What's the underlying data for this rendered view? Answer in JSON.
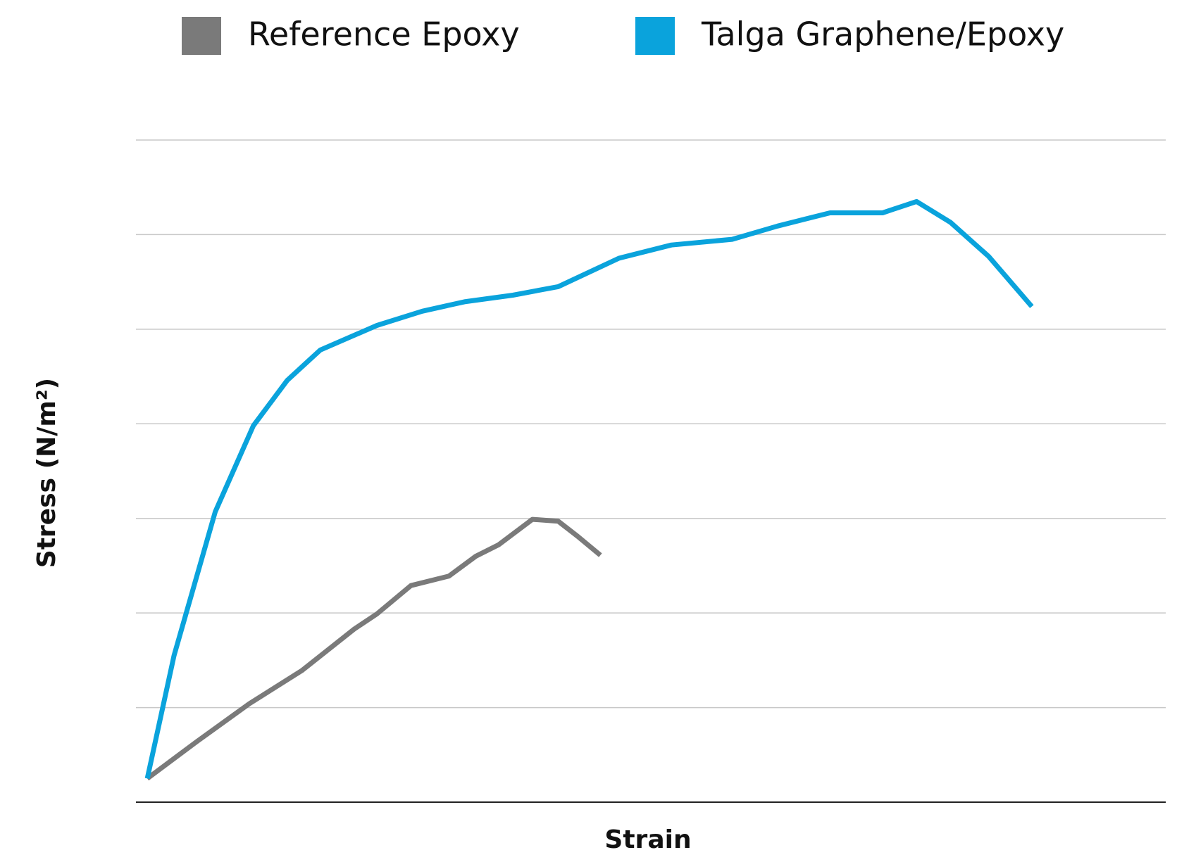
{
  "chart_data": {
    "type": "line",
    "xlabel": "Strain",
    "ylabel": "Stress (N/m²)",
    "xlim": [
      0,
      100
    ],
    "ylim": [
      0,
      7
    ],
    "yticks": [
      0,
      1,
      2,
      3,
      4,
      5,
      6,
      7
    ],
    "grid": true,
    "series": [
      {
        "name": "Reference Epoxy",
        "color": "#7a7a7a",
        "x": [
          1.1,
          5.9,
          11.0,
          16.1,
          21.2,
          23.4,
          26.7,
          30.4,
          33.0,
          35.2,
          38.5,
          41.0,
          42.9,
          45.1
        ],
        "values": [
          0.25,
          0.64,
          1.04,
          1.39,
          1.83,
          1.99,
          2.29,
          2.39,
          2.6,
          2.72,
          2.99,
          2.97,
          2.81,
          2.61
        ]
      },
      {
        "name": "Talga Graphene/Epoxy",
        "color": "#0aa3dc",
        "x": [
          1.1,
          3.7,
          7.7,
          11.4,
          14.7,
          17.9,
          23.4,
          27.8,
          31.9,
          36.6,
          41.0,
          46.9,
          52.0,
          57.9,
          62.3,
          67.4,
          72.5,
          75.8,
          79.1,
          82.8,
          87.0
        ],
        "values": [
          0.25,
          1.55,
          3.07,
          3.98,
          4.46,
          4.78,
          5.04,
          5.19,
          5.29,
          5.36,
          5.45,
          5.75,
          5.89,
          5.95,
          6.09,
          6.23,
          6.23,
          6.35,
          6.13,
          5.77,
          5.24
        ]
      }
    ]
  }
}
